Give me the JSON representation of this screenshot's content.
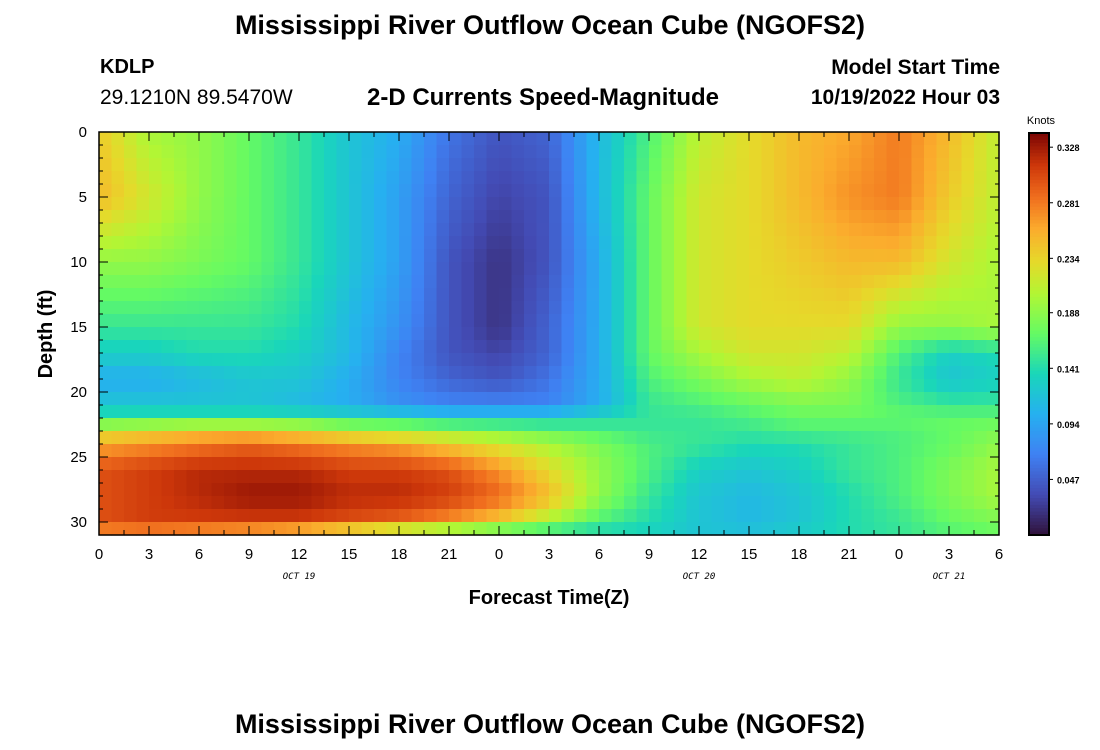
{
  "page": {
    "title_top": "Mississippi River Outflow Ocean Cube (NGOFS2)",
    "title_bottom": "Mississippi River Outflow Ocean Cube (NGOFS2)",
    "station_id": "KDLP",
    "station_coords": "29.1210N  89.5470W",
    "subtitle": "2-D Currents Speed-Magnitude",
    "model_start_label": "Model Start Time",
    "model_start_value": "10/19/2022 Hour 03"
  },
  "chart_data": {
    "type": "heatmap",
    "title": "2-D Currents Speed-Magnitude",
    "xlabel": "Forecast Time(Z)",
    "ylabel": "Depth (ft)",
    "x_tick_labels": [
      "0",
      "3",
      "6",
      "9",
      "12",
      "15",
      "18",
      "21",
      "0",
      "3",
      "6",
      "9",
      "12",
      "15",
      "18",
      "21",
      "0",
      "3",
      "6"
    ],
    "x_range_hours": [
      0,
      54
    ],
    "date_labels": [
      {
        "text": "OCT 19",
        "hour": 12
      },
      {
        "text": "OCT 20",
        "hour": 36
      },
      {
        "text": "OCT 21",
        "hour": 51
      }
    ],
    "y_tick_labels": [
      "0",
      "5",
      "10",
      "15",
      "20",
      "25",
      "30"
    ],
    "ylim": [
      0,
      31
    ],
    "y_inverted": true,
    "colorbar": {
      "unit_label": "Knots",
      "ticks": [
        "0.328",
        "0.281",
        "0.234",
        "0.188",
        "0.141",
        "0.094",
        "0.047"
      ],
      "range": [
        0.0,
        0.34
      ],
      "colormap": "turbo"
    },
    "grid": false,
    "speed_field_knots": {
      "depths_ft": [
        0,
        5,
        10,
        15,
        17,
        19,
        21,
        22,
        23,
        24,
        26,
        28,
        30,
        31
      ],
      "hours": [
        0,
        3,
        6,
        9,
        12,
        15,
        18,
        21,
        24,
        27,
        30,
        33,
        36,
        39,
        42,
        45,
        48,
        51,
        54
      ],
      "values": [
        [
          0.24,
          0.2,
          0.19,
          0.17,
          0.15,
          0.12,
          0.1,
          0.06,
          0.04,
          0.05,
          0.11,
          0.16,
          0.21,
          0.23,
          0.25,
          0.26,
          0.28,
          0.25,
          0.21
        ],
        [
          0.25,
          0.22,
          0.19,
          0.17,
          0.15,
          0.12,
          0.09,
          0.05,
          0.03,
          0.04,
          0.11,
          0.17,
          0.22,
          0.23,
          0.25,
          0.27,
          0.28,
          0.24,
          0.21
        ],
        [
          0.19,
          0.19,
          0.18,
          0.17,
          0.15,
          0.12,
          0.09,
          0.04,
          0.02,
          0.04,
          0.1,
          0.17,
          0.22,
          0.23,
          0.24,
          0.25,
          0.25,
          0.22,
          0.2
        ],
        [
          0.15,
          0.15,
          0.15,
          0.15,
          0.14,
          0.11,
          0.08,
          0.04,
          0.02,
          0.05,
          0.1,
          0.17,
          0.22,
          0.23,
          0.23,
          0.23,
          0.19,
          0.19,
          0.2
        ],
        [
          0.13,
          0.13,
          0.14,
          0.14,
          0.13,
          0.11,
          0.07,
          0.04,
          0.03,
          0.05,
          0.1,
          0.17,
          0.2,
          0.22,
          0.22,
          0.21,
          0.16,
          0.13,
          0.14
        ],
        [
          0.1,
          0.1,
          0.11,
          0.12,
          0.12,
          0.1,
          0.07,
          0.05,
          0.04,
          0.06,
          0.1,
          0.16,
          0.18,
          0.2,
          0.21,
          0.19,
          0.15,
          0.12,
          0.13
        ],
        [
          0.12,
          0.12,
          0.12,
          0.12,
          0.11,
          0.1,
          0.08,
          0.07,
          0.07,
          0.07,
          0.1,
          0.15,
          0.16,
          0.17,
          0.18,
          0.18,
          0.16,
          0.15,
          0.15
        ],
        [
          0.15,
          0.15,
          0.15,
          0.15,
          0.15,
          0.14,
          0.14,
          0.13,
          0.13,
          0.13,
          0.14,
          0.15,
          0.15,
          0.16,
          0.17,
          0.17,
          0.17,
          0.17,
          0.17
        ],
        [
          0.22,
          0.23,
          0.24,
          0.24,
          0.23,
          0.21,
          0.2,
          0.19,
          0.18,
          0.17,
          0.16,
          0.15,
          0.15,
          0.15,
          0.16,
          0.16,
          0.16,
          0.17,
          0.18
        ],
        [
          0.26,
          0.27,
          0.28,
          0.29,
          0.28,
          0.27,
          0.26,
          0.24,
          0.22,
          0.2,
          0.18,
          0.16,
          0.15,
          0.14,
          0.14,
          0.15,
          0.16,
          0.17,
          0.19
        ],
        [
          0.3,
          0.31,
          0.32,
          0.32,
          0.32,
          0.31,
          0.31,
          0.3,
          0.27,
          0.23,
          0.19,
          0.16,
          0.13,
          0.12,
          0.13,
          0.15,
          0.16,
          0.18,
          0.2
        ],
        [
          0.3,
          0.31,
          0.32,
          0.33,
          0.33,
          0.32,
          0.32,
          0.31,
          0.29,
          0.25,
          0.19,
          0.15,
          0.12,
          0.11,
          0.12,
          0.14,
          0.16,
          0.18,
          0.2
        ],
        [
          0.3,
          0.31,
          0.31,
          0.31,
          0.31,
          0.3,
          0.29,
          0.27,
          0.24,
          0.2,
          0.16,
          0.14,
          0.12,
          0.11,
          0.12,
          0.14,
          0.15,
          0.17,
          0.18
        ],
        [
          0.26,
          0.26,
          0.25,
          0.24,
          0.22,
          0.19,
          0.16,
          0.14,
          0.13,
          0.13,
          0.13,
          0.13,
          0.12,
          0.12,
          0.13,
          0.14,
          0.15,
          0.16,
          0.17
        ]
      ]
    }
  }
}
